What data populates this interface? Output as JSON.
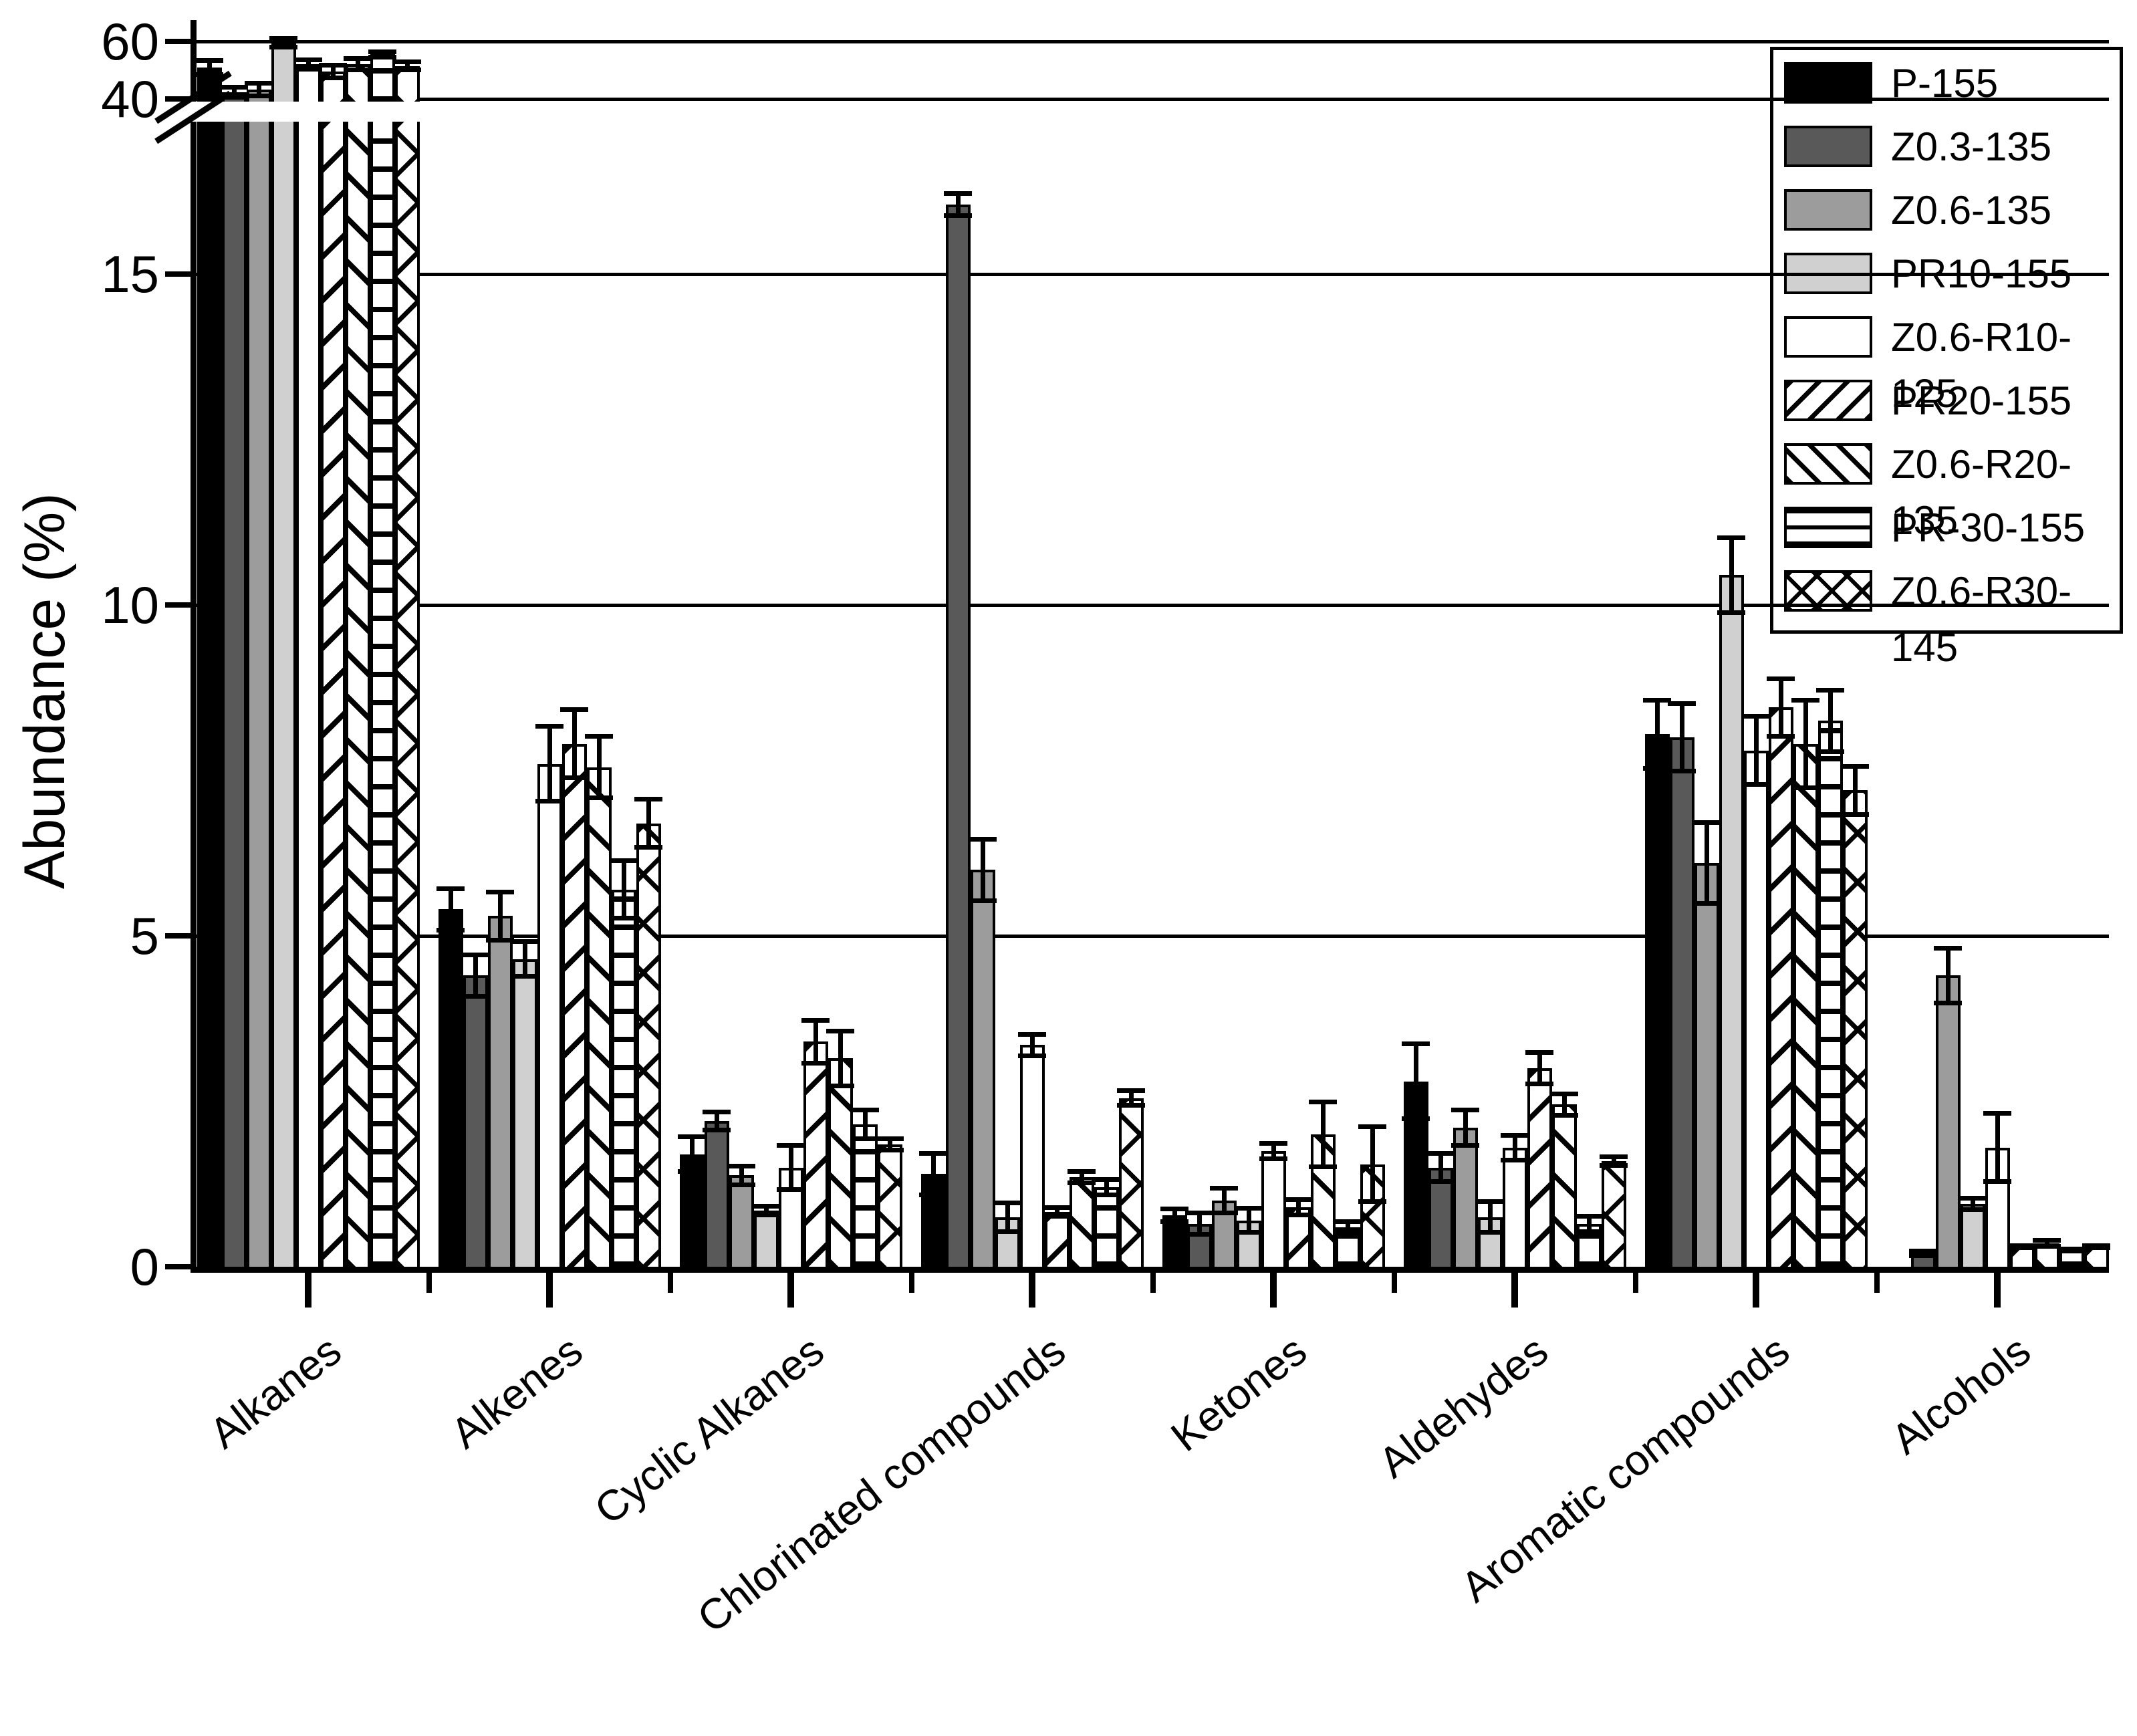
{
  "y_axis": {
    "label": "Abundance (%)",
    "upper_section_ticks": [
      60,
      40
    ],
    "lower_section_ticks": [
      15,
      10,
      5,
      0
    ]
  },
  "chart_data": {
    "type": "bar",
    "title": "",
    "xlabel": "",
    "ylabel": "Abundance (%)",
    "grid": true,
    "legend_position": "top-right",
    "axis_break": {
      "lower_range": [
        0,
        17.3
      ],
      "upper_range": [
        36,
        64
      ],
      "upper_ticks": [
        40,
        60
      ],
      "lower_ticks": [
        0,
        5,
        10,
        15
      ]
    },
    "categories": [
      "Alkanes",
      "Alkenes",
      "Cyclic Alkanes",
      "Chlorinated compounds",
      "Ketones",
      "Aldehydes",
      "Aromatic compounds",
      "Alcohols"
    ],
    "series": [
      {
        "name": "P-155",
        "pattern": "solid",
        "color": "#000000",
        "values": [
          51.0,
          5.4,
          1.7,
          1.4,
          0.78,
          2.8,
          8.05,
          0
        ],
        "errors": [
          3.3,
          0.35,
          0.3,
          0.35,
          0.13,
          0.6,
          0.55,
          0
        ]
      },
      {
        "name": "Z0.3-135",
        "pattern": "solid",
        "color": "#595959",
        "values": [
          42.3,
          4.4,
          2.2,
          16.05,
          0.65,
          1.5,
          8.0,
          0.2
        ],
        "errors": [
          2.5,
          0.35,
          0.17,
          0.2,
          0.2,
          0.25,
          0.55,
          0.07
        ]
      },
      {
        "name": "Z0.6-135",
        "pattern": "solid",
        "color": "#9c9c9c",
        "values": [
          43.3,
          5.3,
          1.38,
          6.0,
          1.0,
          2.1,
          6.1,
          4.4
        ],
        "errors": [
          3.0,
          0.4,
          0.18,
          0.5,
          0.22,
          0.3,
          0.65,
          0.45
        ]
      },
      {
        "name": "PR10-155",
        "pattern": "solid",
        "color": "#d0d0d0",
        "values": [
          59.5,
          4.65,
          0.85,
          0.75,
          0.7,
          0.75,
          10.45,
          0.95
        ],
        "errors": [
          2.3,
          0.3,
          0.1,
          0.25,
          0.22,
          0.27,
          0.6,
          0.12
        ]
      },
      {
        "name": "Z0.6-R10-125",
        "pattern": "solid",
        "color": "#ffffff",
        "values": [
          52.0,
          7.6,
          1.5,
          3.35,
          1.75,
          1.8,
          7.8,
          1.8
        ],
        "errors": [
          2.5,
          0.6,
          0.37,
          0.2,
          0.15,
          0.22,
          0.55,
          0.55
        ]
      },
      {
        "name": "PR20-155",
        "pattern": "hatch-forward",
        "color": "#ffffff",
        "values": [
          49.5,
          7.9,
          3.4,
          0.83,
          0.9,
          3.0,
          8.45,
          0.3
        ],
        "errors": [
          3.0,
          0.55,
          0.36,
          0.1,
          0.15,
          0.27,
          0.47,
          0.05
        ]
      },
      {
        "name": "Z0.6-R20-135",
        "pattern": "hatch-back",
        "color": "#ffffff",
        "values": [
          52.0,
          7.55,
          3.15,
          1.35,
          2.0,
          2.45,
          7.9,
          0.35
        ],
        "errors": [
          2.8,
          0.5,
          0.45,
          0.12,
          0.53,
          0.2,
          0.7,
          0.08
        ]
      },
      {
        "name": "PR-30-155",
        "pattern": "horizontal",
        "color": "#ffffff",
        "values": [
          55.5,
          5.7,
          2.15,
          1.2,
          0.6,
          0.65,
          8.25,
          0.25
        ],
        "errors": [
          1.8,
          0.47,
          0.25,
          0.15,
          0.12,
          0.15,
          0.5,
          0.05
        ]
      },
      {
        "name": "Z0.6-R30-145",
        "pattern": "cross",
        "color": "#ffffff",
        "values": [
          51.5,
          6.7,
          1.85,
          2.55,
          1.55,
          1.6,
          7.2,
          0.3
        ],
        "errors": [
          2.3,
          0.4,
          0.12,
          0.15,
          0.6,
          0.1,
          0.4,
          0.05
        ]
      }
    ]
  },
  "legend": {
    "items": [
      "P-155",
      "Z0.3-135",
      "Z0.6-135",
      "PR10-155",
      "Z0.6-R10-125",
      "PR20-155",
      "Z0.6-R20-135",
      "PR-30-155",
      "Z0.6-R30-145"
    ]
  }
}
